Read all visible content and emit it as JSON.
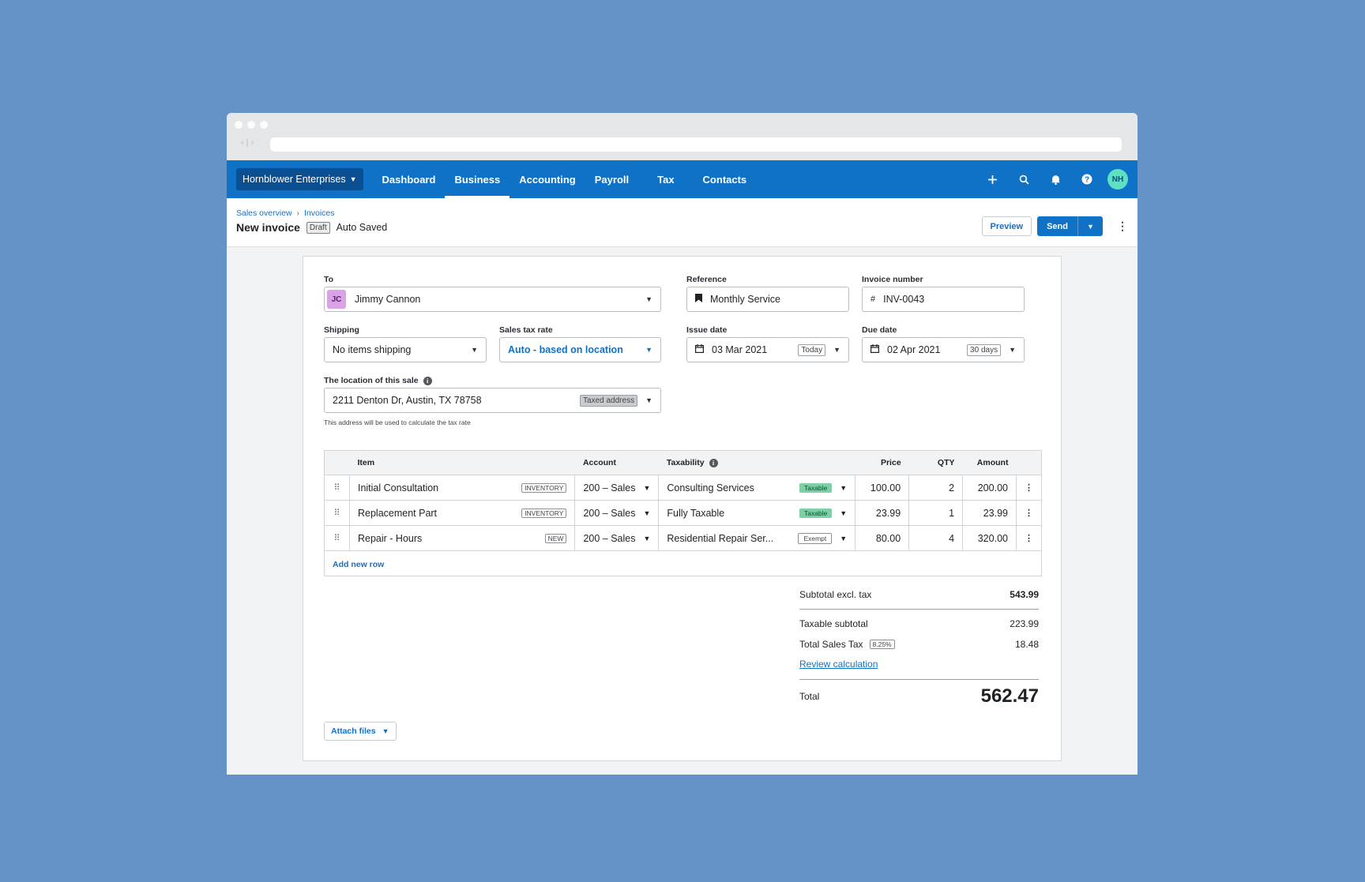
{
  "nav": {
    "org": "Hornblower Enterprises",
    "items": [
      "Dashboard",
      "Business",
      "Accounting",
      "Payroll",
      "Tax",
      "Contacts"
    ],
    "active": "Business",
    "avatar": "NH"
  },
  "breadcrumb": {
    "root": "Sales overview",
    "current": "Invoices"
  },
  "page": {
    "title": "New invoice",
    "status": "Draft",
    "save_state": "Auto Saved"
  },
  "actions": {
    "preview": "Preview",
    "send": "Send"
  },
  "form": {
    "to_label": "To",
    "to_initials": "JC",
    "to_value": "Jimmy Cannon",
    "reference_label": "Reference",
    "reference_value": "Monthly Service",
    "invoice_number_label": "Invoice number",
    "invoice_number_value": "INV-0043",
    "shipping_label": "Shipping",
    "shipping_value": "No items shipping",
    "tax_rate_label": "Sales tax rate",
    "tax_rate_value": "Auto - based on location",
    "issue_date_label": "Issue date",
    "issue_date_value": "03 Mar 2021",
    "issue_date_pill": "Today",
    "due_date_label": "Due date",
    "due_date_value": "02 Apr 2021",
    "due_date_pill": "30 days",
    "location_label": "The location of this sale",
    "location_value": "2211 Denton Dr, Austin, TX 78758",
    "location_pill": "Taxed address",
    "location_hint": "This address will be used to calculate the tax rate"
  },
  "table": {
    "headers": {
      "item": "Item",
      "account": "Account",
      "taxability": "Taxability",
      "price": "Price",
      "qty": "QTY",
      "amount": "Amount"
    },
    "rows": [
      {
        "item": "Initial Consultation",
        "tag": "INVENTORY",
        "account": "200 – Sales",
        "taxability": "Consulting Services",
        "tax_status": "Taxable",
        "price": "100.00",
        "qty": "2",
        "amount": "200.00"
      },
      {
        "item": "Replacement Part",
        "tag": "INVENTORY",
        "account": "200 – Sales",
        "taxability": "Fully Taxable",
        "tax_status": "Taxable",
        "price": "23.99",
        "qty": "1",
        "amount": "23.99"
      },
      {
        "item": "Repair - Hours",
        "tag": "NEW",
        "account": "200 – Sales",
        "taxability": "Residential Repair Ser...",
        "tax_status": "Exempt",
        "price": "80.00",
        "qty": "4",
        "amount": "320.00"
      }
    ],
    "add_row": "Add new row"
  },
  "totals": {
    "subtotal_label": "Subtotal excl. tax",
    "subtotal_value": "543.99",
    "taxable_label": "Taxable subtotal",
    "taxable_value": "223.99",
    "tax_label": "Total Sales Tax",
    "tax_rate": "8.25%",
    "tax_value": "18.48",
    "review_link": "Review calculation",
    "total_label": "Total",
    "total_value": "562.47"
  },
  "attach": "Attach files"
}
